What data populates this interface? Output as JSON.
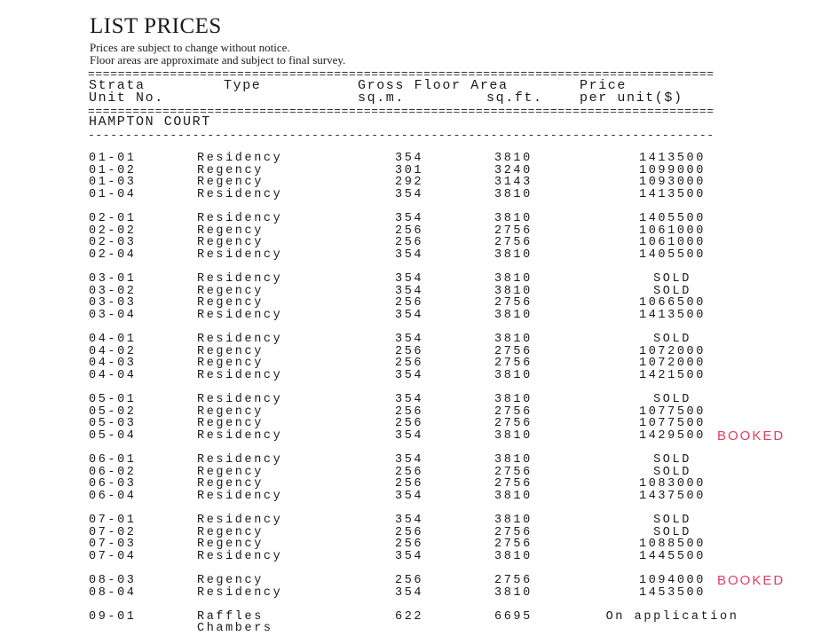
{
  "title": "LIST PRICES",
  "notes": [
    "Prices are subject to change without notice.",
    "Floor areas are approximate and subject to final survey."
  ],
  "headers": {
    "unit_1": "Strata",
    "unit_2": "Unit No.",
    "type": "Type",
    "area": "Gross Floor Area",
    "sqm": "sq.m.",
    "sqft": "sq.ft.",
    "price_1": "Price",
    "price_2": "per unit($)"
  },
  "section": "HAMPTON COURT",
  "stamp_text": "BOOKED",
  "groups": [
    [
      [
        "01-01",
        "Residency",
        "354",
        "3810",
        "1413500"
      ],
      [
        "01-02",
        "Regency",
        "301",
        "3240",
        "1099000"
      ],
      [
        "01-03",
        "Regency",
        "292",
        "3143",
        "1093000"
      ],
      [
        "01-04",
        "Residency",
        "354",
        "3810",
        "1413500"
      ]
    ],
    [
      [
        "02-01",
        "Residency",
        "354",
        "3810",
        "1405500"
      ],
      [
        "02-02",
        "Regency",
        "256",
        "2756",
        "1061000"
      ],
      [
        "02-03",
        "Regency",
        "256",
        "2756",
        "1061000"
      ],
      [
        "02-04",
        "Residency",
        "354",
        "3810",
        "1405500"
      ]
    ],
    [
      [
        "03-01",
        "Residency",
        "354",
        "3810",
        "SOLD"
      ],
      [
        "03-02",
        "Regency",
        "354",
        "3810",
        "SOLD"
      ],
      [
        "03-03",
        "Regency",
        "256",
        "2756",
        "1066500"
      ],
      [
        "03-04",
        "Residency",
        "354",
        "3810",
        "1413500"
      ]
    ],
    [
      [
        "04-01",
        "Residency",
        "354",
        "3810",
        "SOLD"
      ],
      [
        "04-02",
        "Regency",
        "256",
        "2756",
        "1072000"
      ],
      [
        "04-03",
        "Regency",
        "256",
        "2756",
        "1072000"
      ],
      [
        "04-04",
        "Residency",
        "354",
        "3810",
        "1421500"
      ]
    ],
    [
      [
        "05-01",
        "Residency",
        "354",
        "3810",
        "SOLD"
      ],
      [
        "05-02",
        "Regency",
        "256",
        "2756",
        "1077500"
      ],
      [
        "05-03",
        "Regency",
        "256",
        "2756",
        "1077500"
      ],
      [
        "05-04",
        "Residency",
        "354",
        "3810",
        "1429500",
        "BOOKED"
      ]
    ],
    [
      [
        "06-01",
        "Residency",
        "354",
        "3810",
        "SOLD"
      ],
      [
        "06-02",
        "Regency",
        "256",
        "2756",
        "SOLD"
      ],
      [
        "06-03",
        "Regency",
        "256",
        "2756",
        "1083000"
      ],
      [
        "06-04",
        "Residency",
        "354",
        "3810",
        "1437500"
      ]
    ],
    [
      [
        "07-01",
        "Residency",
        "354",
        "3810",
        "SOLD"
      ],
      [
        "07-02",
        "Regency",
        "256",
        "2756",
        "SOLD"
      ],
      [
        "07-03",
        "Regency",
        "256",
        "2756",
        "1088500"
      ],
      [
        "07-04",
        "Residency",
        "354",
        "3810",
        "1445500"
      ]
    ],
    [
      [
        "08-03",
        "Regency",
        "256",
        "2756",
        "1094000",
        "BOOKED"
      ],
      [
        "08-04",
        "Residency",
        "354",
        "3810",
        "1453500"
      ]
    ],
    [
      [
        "09-01",
        "Raffles\nChambers",
        "622",
        "6695",
        "On application"
      ]
    ]
  ]
}
